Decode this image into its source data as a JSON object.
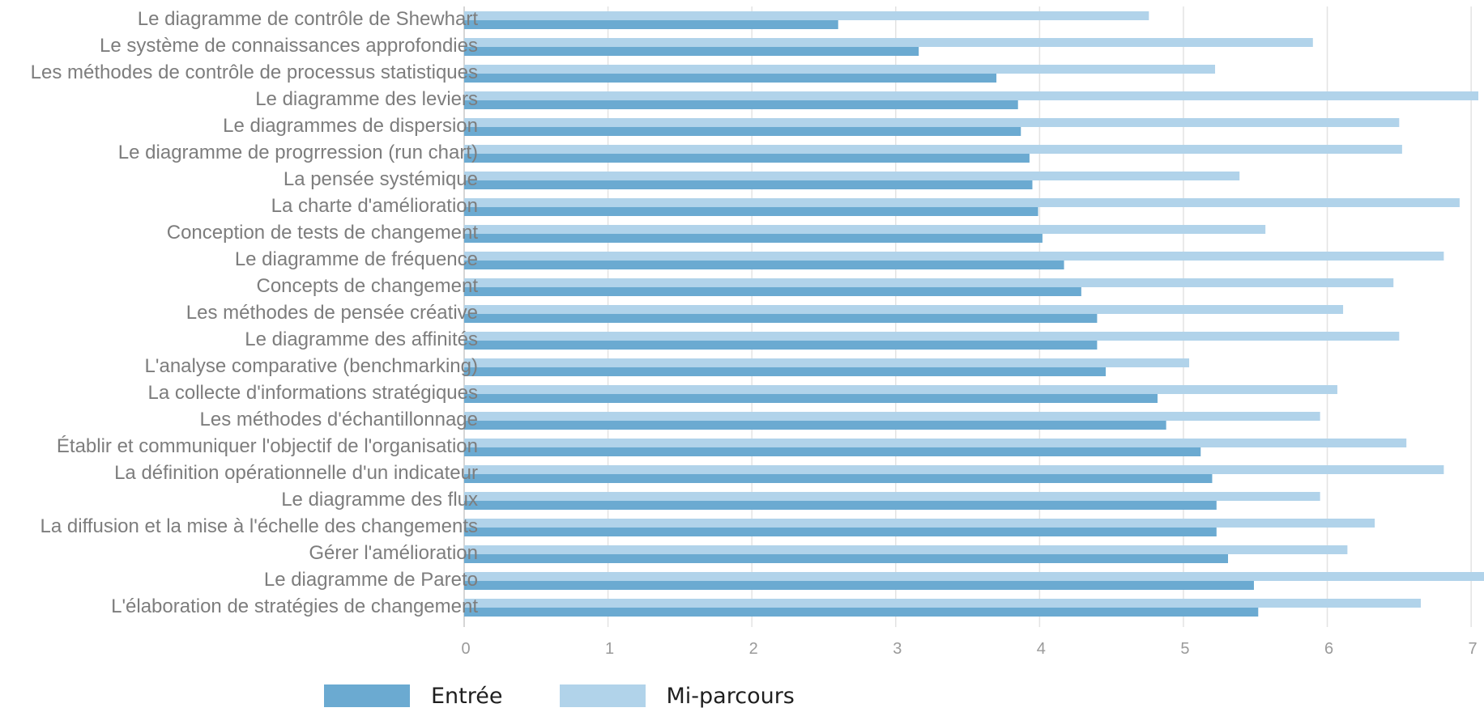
{
  "chart_data": {
    "type": "bar",
    "orientation": "horizontal",
    "categories": [
      "Le diagramme de contrôle de Shewhart",
      "Le système de connaissances approfondies",
      "Les méthodes de contrôle de processus statistiques",
      "Le diagramme des leviers",
      "Le diagrammes de dispersion",
      "Le diagramme de progrression (run chart)",
      "La pensée systémique",
      "La charte d'amélioration",
      "Conception de tests de changement",
      "Le diagramme de fréquence",
      "Concepts de changement",
      "Les méthodes de pensée créative",
      "Le diagramme des affinités",
      "L'analyse comparative (benchmarking)",
      "La collecte d'informations stratégiques",
      "Les méthodes d'échantillonnage",
      "Établir et communiquer l'objectif de l'organisation",
      "La définition opérationnelle d'un indicateur",
      "Le diagramme des flux",
      "La diffusion et la mise à l'échelle des changements",
      "Gérer l'amélioration",
      "Le diagramme de Pareto",
      "L'élaboration de stratégies de changement"
    ],
    "series": [
      {
        "name": "Entrée",
        "color": "#6baad1",
        "values": [
          2.6,
          3.16,
          3.7,
          3.85,
          3.87,
          3.93,
          3.95,
          3.99,
          4.02,
          4.17,
          4.29,
          4.4,
          4.4,
          4.46,
          4.82,
          4.88,
          5.12,
          5.2,
          5.23,
          5.23,
          5.31,
          5.49,
          5.52
        ]
      },
      {
        "name": "Mi-parcours",
        "color": "#b1d3ea",
        "values": [
          4.76,
          5.9,
          5.22,
          7.05,
          6.5,
          6.52,
          5.39,
          6.92,
          5.57,
          6.81,
          6.46,
          6.11,
          6.5,
          5.04,
          6.07,
          5.95,
          6.55,
          6.81,
          5.95,
          6.33,
          6.14,
          7.1,
          6.65
        ]
      }
    ],
    "x_ticks": [
      "0",
      "1",
      "2",
      "3",
      "4",
      "5",
      "6",
      "7"
    ],
    "xlim": [
      0,
      7.05
    ],
    "grid": true,
    "legend": "bottom"
  }
}
